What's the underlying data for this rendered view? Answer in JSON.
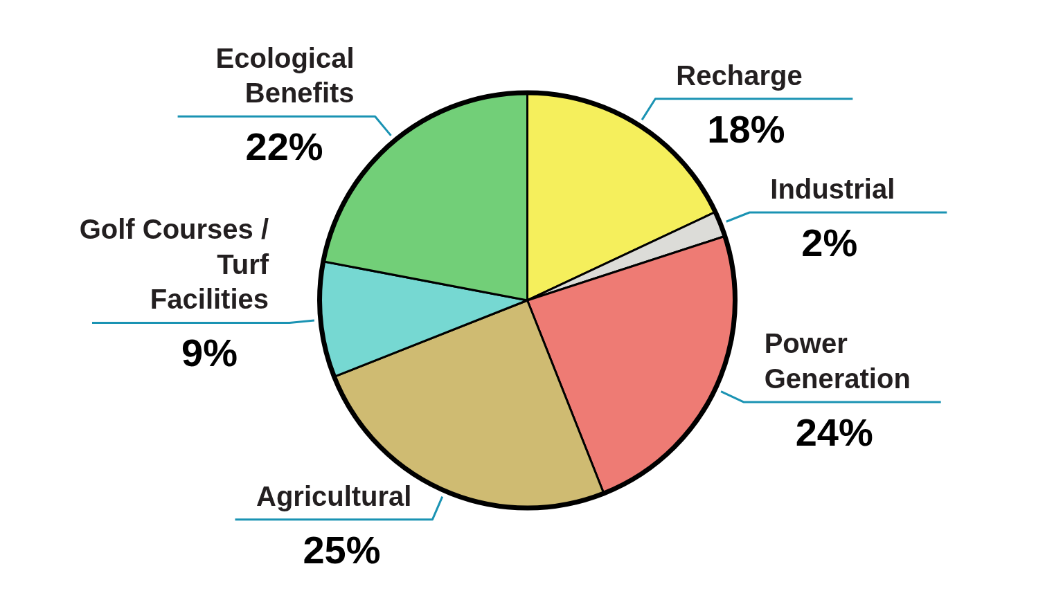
{
  "chart_data": {
    "type": "pie",
    "categories": [
      "Recharge",
      "Industrial",
      "Power Generation",
      "Agricultural",
      "Golf Courses / Turf Facilities",
      "Ecological Benefits"
    ],
    "values": [
      18,
      2,
      24,
      25,
      9,
      22
    ],
    "colors": [
      "#f5ef5c",
      "#dcdcd8",
      "#ee7b74",
      "#cfbb72",
      "#76d8d2",
      "#72cf78"
    ],
    "value_labels": [
      "18%",
      "2%",
      "24%",
      "25%",
      "9%",
      "22%"
    ]
  }
}
